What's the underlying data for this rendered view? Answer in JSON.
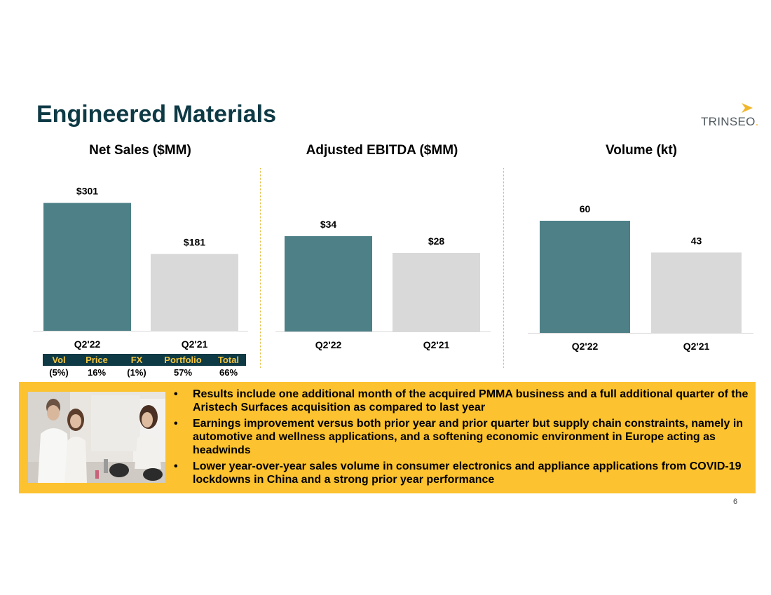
{
  "slide": {
    "title": "Engineered Materials",
    "page_number": "6"
  },
  "logo": {
    "brand": "TRINSEO",
    "dot": ".",
    "colors": {
      "chevron": "#f2b62b",
      "text": "#505a60"
    }
  },
  "colors": {
    "current": "#4d8087",
    "prior": "#d9d9d9",
    "title": "#0e3a45",
    "panel": "#fcc22f",
    "bridge_header_bg": "#0e3a45",
    "bridge_header_text": "#f2c53d"
  },
  "chart_data": [
    {
      "type": "bar",
      "title": "Net Sales ($MM)",
      "categories": [
        "Q2'22",
        "Q2'21"
      ],
      "values": [
        301,
        181
      ],
      "labels": [
        "$301",
        "$181"
      ],
      "ylim": [
        0,
        330
      ],
      "grid": false
    },
    {
      "type": "bar",
      "title": "Adjusted EBITDA ($MM)",
      "categories": [
        "Q2'22",
        "Q2'21"
      ],
      "values": [
        34,
        28
      ],
      "labels": [
        "$34",
        "$28"
      ],
      "ylim": [
        0,
        50
      ],
      "grid": false
    },
    {
      "type": "bar",
      "title": "Volume (kt)",
      "categories": [
        "Q2'22",
        "Q2'21"
      ],
      "values": [
        60,
        43
      ],
      "labels": [
        "60",
        "43"
      ],
      "ylim": [
        0,
        75
      ],
      "grid": false
    }
  ],
  "bridge": {
    "headers": [
      "Vol",
      "Price",
      "FX",
      "Portfolio",
      "Total"
    ],
    "values": [
      "(5%)",
      "16%",
      "(1%)",
      "57%",
      "66%"
    ]
  },
  "photo": {
    "alt": "people in bathroom using personal care appliances"
  },
  "bullets": [
    "Results include one additional month of the acquired PMMA business and a full additional quarter of the Aristech Surfaces acquisition as compared to last year",
    "Earnings improvement versus both prior year and prior quarter but supply chain constraints, namely in automotive and wellness applications, and a softening economic environment in Europe acting as headwinds",
    "Lower year-over-year sales volume in consumer electronics and appliance applications from COVID-19 lockdowns in China and a strong prior year performance"
  ]
}
